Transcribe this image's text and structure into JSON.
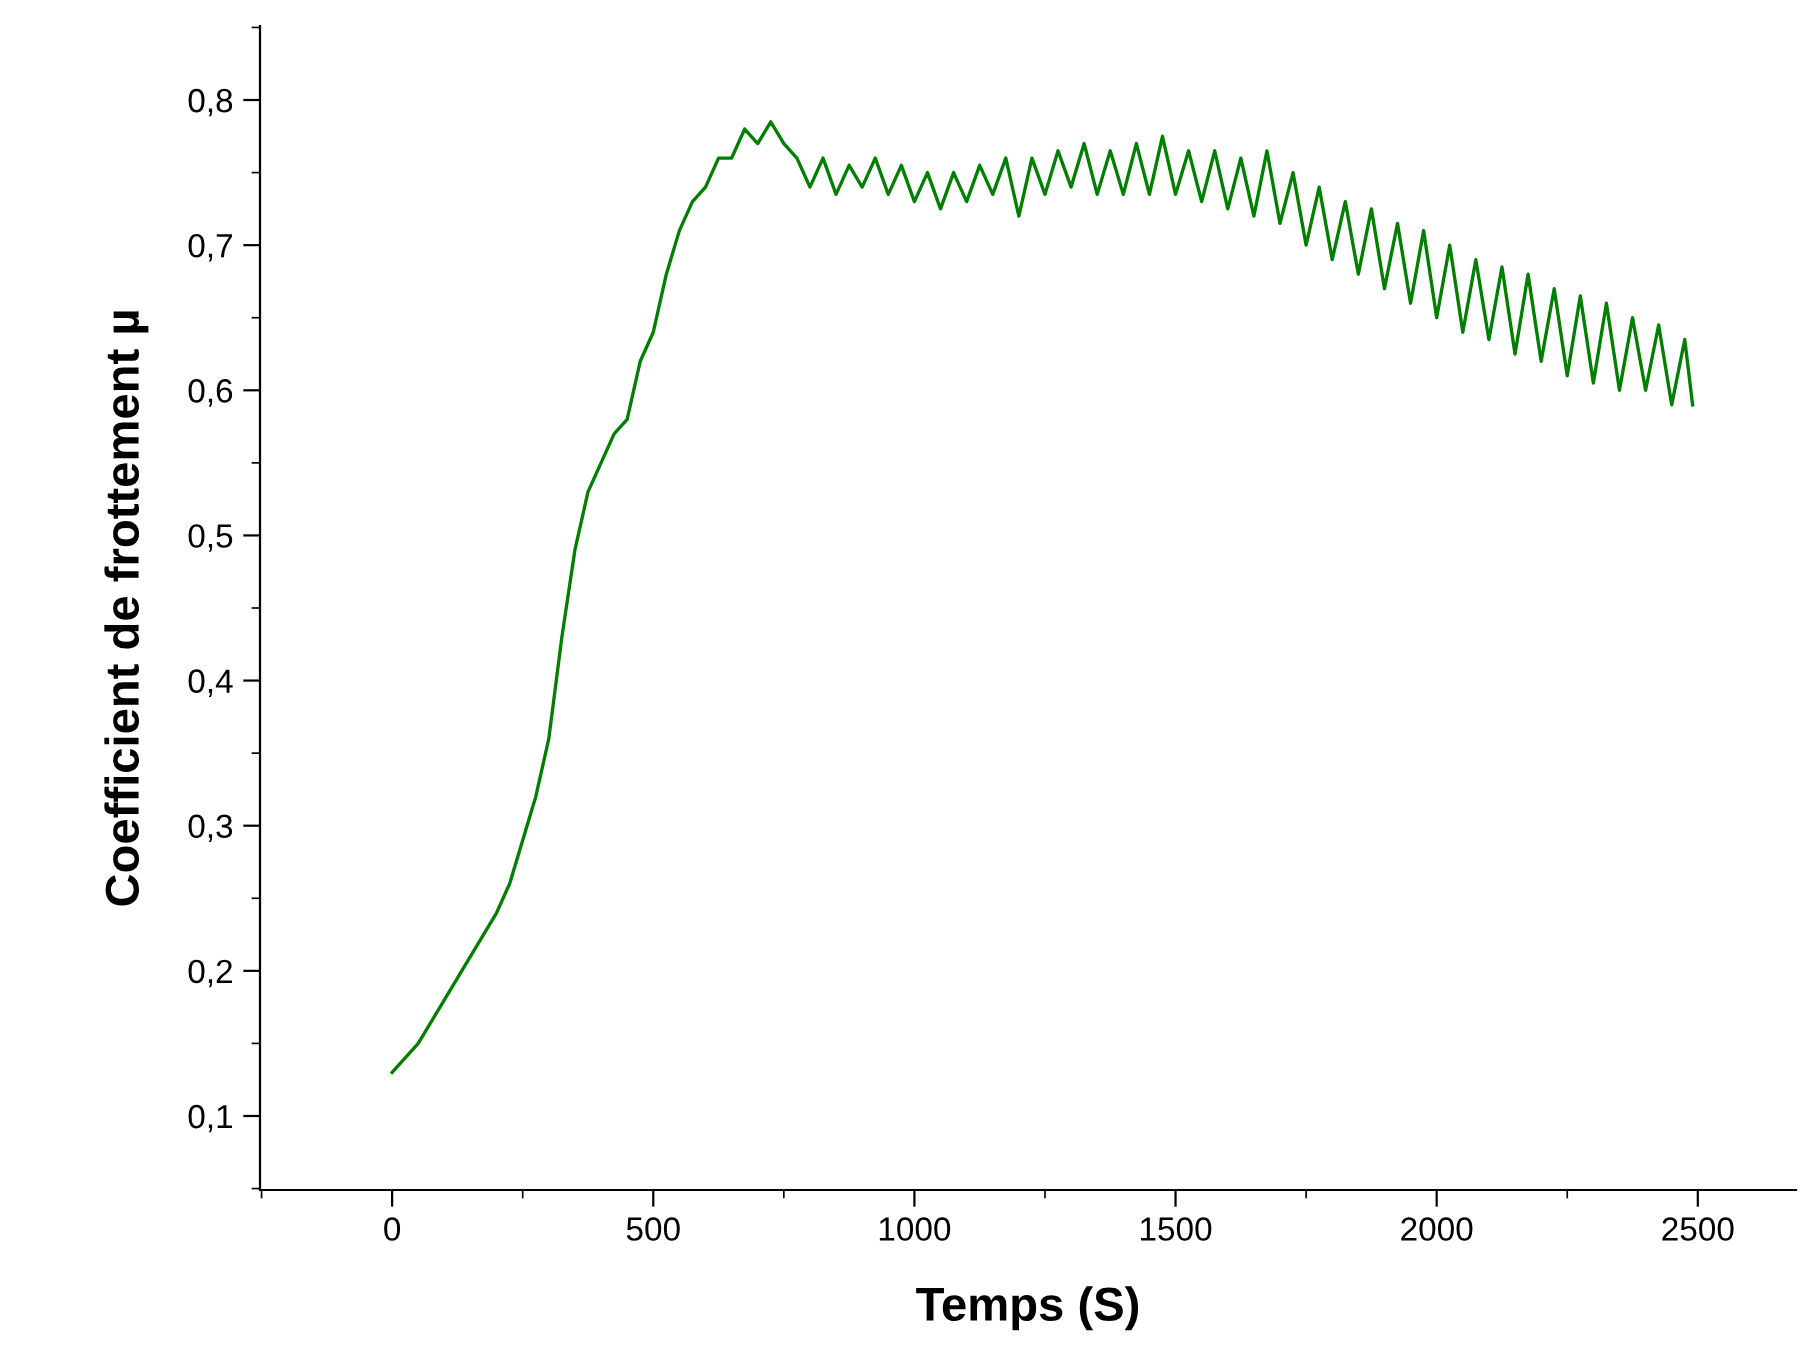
{
  "chart_data": {
    "type": "line",
    "xlabel": "Temps (S)",
    "ylabel": "Coefficient de frottement µ",
    "xlim": [
      -253,
      2688
    ],
    "ylim": [
      0.049,
      0.851
    ],
    "xticks": [
      0,
      500,
      1000,
      1500,
      2000,
      2500
    ],
    "yticks": [
      {
        "value": 0.1,
        "label": "0,1"
      },
      {
        "value": 0.2,
        "label": "0,2"
      },
      {
        "value": 0.3,
        "label": "0,3"
      },
      {
        "value": 0.4,
        "label": "0,4"
      },
      {
        "value": 0.5,
        "label": "0,5"
      },
      {
        "value": 0.6,
        "label": "0,6"
      },
      {
        "value": 0.7,
        "label": "0,7"
      },
      {
        "value": 0.8,
        "label": "0,8"
      }
    ],
    "marker": "none",
    "line_style": "solid",
    "series": [
      {
        "color": "#007f00",
        "x": [
          0,
          25,
          50,
          75,
          100,
          125,
          150,
          175,
          200,
          225,
          250,
          275,
          300,
          325,
          350,
          375,
          400,
          425,
          450,
          475,
          500,
          525,
          550,
          575,
          600,
          625,
          650,
          675,
          700,
          725,
          750,
          775,
          800,
          825,
          850,
          875,
          900,
          925,
          950,
          975,
          1000,
          1025,
          1050,
          1075,
          1100,
          1125,
          1150,
          1175,
          1200,
          1225,
          1250,
          1275,
          1300,
          1325,
          1350,
          1375,
          1400,
          1425,
          1450,
          1475,
          1500,
          1525,
          1550,
          1575,
          1600,
          1625,
          1650,
          1675,
          1700,
          1725,
          1750,
          1775,
          1800,
          1825,
          1850,
          1875,
          1900,
          1925,
          1950,
          1975,
          2000,
          2025,
          2050,
          2075,
          2100,
          2125,
          2150,
          2175,
          2200,
          2225,
          2250,
          2275,
          2300,
          2325,
          2350,
          2375,
          2400,
          2425,
          2450,
          2475,
          2490
        ],
        "values": [
          0.13,
          0.14,
          0.15,
          0.165,
          0.18,
          0.195,
          0.21,
          0.225,
          0.24,
          0.26,
          0.29,
          0.32,
          0.36,
          0.43,
          0.49,
          0.53,
          0.55,
          0.57,
          0.58,
          0.62,
          0.64,
          0.68,
          0.71,
          0.73,
          0.74,
          0.76,
          0.76,
          0.78,
          0.77,
          0.785,
          0.77,
          0.76,
          0.74,
          0.76,
          0.735,
          0.755,
          0.74,
          0.76,
          0.735,
          0.755,
          0.73,
          0.75,
          0.725,
          0.75,
          0.73,
          0.755,
          0.735,
          0.76,
          0.72,
          0.76,
          0.735,
          0.765,
          0.74,
          0.77,
          0.735,
          0.765,
          0.735,
          0.77,
          0.735,
          0.775,
          0.735,
          0.765,
          0.73,
          0.765,
          0.725,
          0.76,
          0.72,
          0.765,
          0.715,
          0.75,
          0.7,
          0.74,
          0.69,
          0.73,
          0.68,
          0.725,
          0.67,
          0.715,
          0.66,
          0.71,
          0.65,
          0.7,
          0.64,
          0.69,
          0.635,
          0.685,
          0.625,
          0.68,
          0.62,
          0.67,
          0.61,
          0.665,
          0.605,
          0.66,
          0.6,
          0.65,
          0.6,
          0.645,
          0.59,
          0.635,
          0.59
        ]
      }
    ]
  }
}
